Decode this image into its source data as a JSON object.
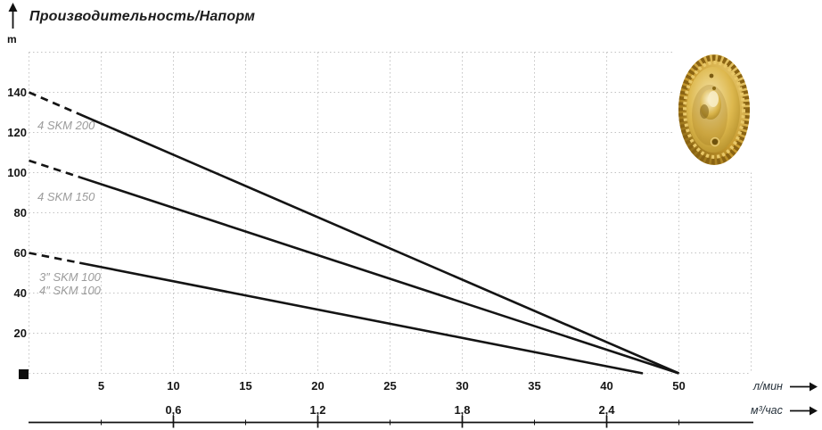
{
  "header": {
    "title": "Производительность/Напорм",
    "y_unit": "m"
  },
  "axis_units": {
    "primary": "л/мин",
    "secondary": "м³/час"
  },
  "chart_data": {
    "type": "line",
    "title": "Производительность/Напорм",
    "y_axis": {
      "label": "m",
      "tick_values": [
        20,
        40,
        60,
        80,
        100,
        120,
        140
      ],
      "range": [
        0,
        160
      ],
      "gridline_step": 20
    },
    "x_axis_primary": {
      "label": "л/мин",
      "tick_labels": [
        "5",
        "10",
        "15",
        "20",
        "25",
        "30",
        "35",
        "40",
        "50"
      ]
    },
    "x_axis_secondary": {
      "label": "м³/час",
      "tick_labels": [
        "0,6",
        "1,2",
        "1,8",
        "2,4"
      ]
    },
    "grid": true,
    "legend_position": "on-curve-left",
    "series": [
      {
        "name": "4 SKM 200",
        "points_flow_head": [
          [
            0,
            140
          ],
          [
            50,
            0
          ]
        ],
        "dashed_until_flow": 3.5
      },
      {
        "name": "4 SKM 150",
        "points_flow_head": [
          [
            0,
            106
          ],
          [
            50,
            0
          ]
        ],
        "dashed_until_flow": 3.5
      },
      {
        "name": "SKM 100",
        "points_flow_head": [
          [
            0,
            60
          ],
          [
            45,
            0
          ]
        ],
        "dashed_until_flow": 3.5
      }
    ],
    "curve_labels": [
      "4 SKM 200",
      "4 SKM 150",
      "3″ SKM 100",
      "4″ SKM 100"
    ],
    "colors": {
      "curve": "#141414",
      "grid": "#c3c3c3",
      "curve_label_gray": "#9b9b9b",
      "axis_text": "#161616",
      "impeller_gold": "#c79a2e"
    }
  }
}
